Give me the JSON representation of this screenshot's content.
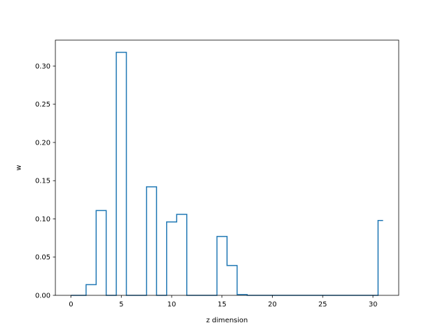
{
  "chart_data": {
    "type": "line",
    "drawstyle": "steps-mid",
    "title": "",
    "xlabel": "z dimension",
    "ylabel": "w",
    "xlim": [
      -1.55,
      32.55
    ],
    "ylim": [
      0,
      0.3339
    ],
    "x_ticks": [
      0,
      5,
      10,
      15,
      20,
      25,
      30
    ],
    "x_tick_labels": [
      "0",
      "5",
      "10",
      "15",
      "20",
      "25",
      "30"
    ],
    "y_ticks": [
      0.0,
      0.05,
      0.1,
      0.15,
      0.2,
      0.25,
      0.3
    ],
    "y_tick_labels": [
      "0.00",
      "0.05",
      "0.10",
      "0.15",
      "0.20",
      "0.25",
      "0.30"
    ],
    "grid": false,
    "series": [
      {
        "color": "#1f77b4",
        "x": [
          0,
          1,
          2,
          3,
          4,
          5,
          6,
          7,
          8,
          9,
          10,
          11,
          12,
          13,
          14,
          15,
          16,
          17,
          18,
          19,
          20,
          21,
          22,
          23,
          24,
          25,
          26,
          27,
          28,
          29,
          30,
          31
        ],
        "values": [
          0,
          0,
          0.014,
          0.111,
          0,
          0.318,
          0,
          0,
          0.142,
          0,
          0.096,
          0.106,
          0,
          0,
          0,
          0.077,
          0.039,
          0.001,
          0,
          0,
          0,
          0,
          0,
          0,
          0,
          0,
          0,
          0,
          0,
          0,
          0,
          0.098
        ]
      }
    ]
  }
}
